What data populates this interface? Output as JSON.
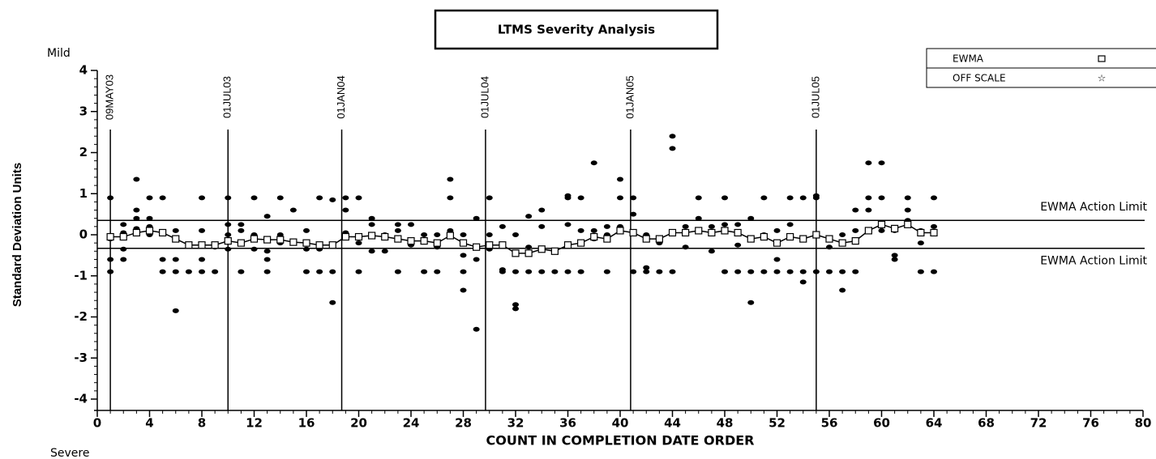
{
  "chart_data": {
    "type": "scatter",
    "title": "LTMS Severity Analysis",
    "top_label": "Mild",
    "bottom_label": "Severe",
    "y_label": "Standard Deviation Units",
    "x_label": "COUNT IN COMPLETION DATE ORDER",
    "xlim": [
      0,
      80
    ],
    "xticks": [
      0,
      4,
      8,
      12,
      16,
      20,
      24,
      28,
      32,
      36,
      40,
      44,
      48,
      52,
      56,
      60,
      64,
      68,
      72,
      76,
      80
    ],
    "ylim": [
      -4,
      4
    ],
    "yticks": [
      -4,
      -3,
      -2,
      -1,
      0,
      1,
      2,
      3,
      4
    ],
    "legend": {
      "position": "top-right",
      "entries": [
        "EWMA",
        "OFF SCALE"
      ]
    },
    "limits": [
      {
        "value": 0.35,
        "label": "EWMA Action Limit"
      },
      {
        "value": -0.33,
        "label": "EWMA Action Limit"
      }
    ],
    "date_lines": [
      {
        "x": 1,
        "label": "09MAY03"
      },
      {
        "x": 10,
        "label": "01JUL03"
      },
      {
        "x": 18.7,
        "label": "01JAN04"
      },
      {
        "x": 29.7,
        "label": "01JUL04"
      },
      {
        "x": 40.8,
        "label": "01JAN05"
      },
      {
        "x": 55,
        "label": "01JUL05"
      }
    ],
    "tests": [
      {
        "x": 1,
        "values": [
          0.9,
          -0.6,
          -0.9,
          -0.1
        ]
      },
      {
        "x": 2,
        "values": [
          0.25,
          -0.35,
          -0.6,
          0.05
        ]
      },
      {
        "x": 3,
        "values": [
          1.35,
          0.6,
          0.4,
          0.15
        ]
      },
      {
        "x": 4,
        "values": [
          0.9,
          0.4,
          0.2,
          0
        ]
      },
      {
        "x": 5,
        "values": [
          0.9,
          -0.6,
          -0.9
        ]
      },
      {
        "x": 6,
        "values": [
          -0.6,
          -0.9,
          -1.85,
          0.1
        ]
      },
      {
        "x": 7,
        "values": [
          -0.9
        ]
      },
      {
        "x": 8,
        "values": [
          0.9,
          -0.6,
          -0.9,
          0.1
        ]
      },
      {
        "x": 9,
        "values": [
          -0.3,
          -0.9
        ]
      },
      {
        "x": 10,
        "values": [
          0.9,
          0.25,
          -0.35,
          0
        ]
      },
      {
        "x": 11,
        "values": [
          0.25,
          0.1,
          -0.9
        ]
      },
      {
        "x": 12,
        "values": [
          0.9,
          -0.35,
          0
        ]
      },
      {
        "x": 13,
        "values": [
          0.45,
          -0.4,
          -0.6,
          -0.9
        ]
      },
      {
        "x": 14,
        "values": [
          0.9,
          0,
          -0.2
        ]
      },
      {
        "x": 15,
        "values": [
          0.6,
          -0.2
        ]
      },
      {
        "x": 16,
        "values": [
          -0.9,
          -0.35,
          0.1
        ]
      },
      {
        "x": 17,
        "values": [
          0.9,
          -0.9,
          -0.35
        ]
      },
      {
        "x": 18,
        "values": [
          0.85,
          -1.65,
          -0.9
        ]
      },
      {
        "x": 19,
        "values": [
          0.9,
          0.6,
          0.05
        ]
      },
      {
        "x": 20,
        "values": [
          0.9,
          -0.2,
          -0.9
        ]
      },
      {
        "x": 21,
        "values": [
          0.4,
          0.25,
          -0.4
        ]
      },
      {
        "x": 22,
        "values": [
          0,
          -0.4
        ]
      },
      {
        "x": 23,
        "values": [
          0.25,
          -0.9,
          0.1
        ]
      },
      {
        "x": 24,
        "values": [
          0.25,
          -0.25,
          -0.2
        ]
      },
      {
        "x": 25,
        "values": [
          0,
          -0.9
        ]
      },
      {
        "x": 26,
        "values": [
          -0.9,
          0,
          -0.3
        ]
      },
      {
        "x": 27,
        "values": [
          1.35,
          0.9,
          0.1
        ]
      },
      {
        "x": 28,
        "values": [
          -0.5,
          -1.35,
          -0.9,
          0
        ]
      },
      {
        "x": 29,
        "values": [
          0.4,
          -2.3,
          -0.6
        ]
      },
      {
        "x": 30,
        "values": [
          0.9,
          0,
          -0.35
        ]
      },
      {
        "x": 31,
        "values": [
          -0.9,
          -0.85,
          0.2
        ]
      },
      {
        "x": 32,
        "values": [
          -1.7,
          -1.8,
          -0.9,
          0
        ]
      },
      {
        "x": 33,
        "values": [
          0.45,
          -0.9,
          -0.3
        ]
      },
      {
        "x": 34,
        "values": [
          0.2,
          -0.9,
          0.6
        ]
      },
      {
        "x": 35,
        "values": [
          -0.9,
          -0.4
        ]
      },
      {
        "x": 36,
        "values": [
          0.95,
          0.9,
          -0.9,
          0.25
        ]
      },
      {
        "x": 37,
        "values": [
          0.9,
          -0.9,
          0.1
        ]
      },
      {
        "x": 38,
        "values": [
          1.75,
          0.1,
          -0.1
        ]
      },
      {
        "x": 39,
        "values": [
          0.2,
          -0.9,
          0
        ]
      },
      {
        "x": 40,
        "values": [
          1.35,
          0.9,
          0.2
        ]
      },
      {
        "x": 41,
        "values": [
          0.9,
          -0.9,
          0.5
        ]
      },
      {
        "x": 42,
        "values": [
          -0.8,
          -0.9,
          0
        ]
      },
      {
        "x": 43,
        "values": [
          -0.2,
          -0.9
        ]
      },
      {
        "x": 44,
        "values": [
          2.4,
          2.1,
          -0.9
        ]
      },
      {
        "x": 45,
        "values": [
          0.2,
          -0.3
        ]
      },
      {
        "x": 46,
        "values": [
          0.9,
          0.4,
          0.1
        ]
      },
      {
        "x": 47,
        "values": [
          -0.4,
          0.2
        ]
      },
      {
        "x": 48,
        "values": [
          0.9,
          -0.9,
          0.25
        ]
      },
      {
        "x": 49,
        "values": [
          0.25,
          -0.9,
          -0.25
        ]
      },
      {
        "x": 50,
        "values": [
          0.4,
          -1.65,
          -0.9
        ]
      },
      {
        "x": 51,
        "values": [
          0.9,
          -0.9,
          0
        ]
      },
      {
        "x": 52,
        "values": [
          -0.6,
          -0.9,
          0.1
        ]
      },
      {
        "x": 53,
        "values": [
          0.9,
          -0.9,
          0.25
        ]
      },
      {
        "x": 54,
        "values": [
          0.9,
          -1.15,
          -0.9
        ]
      },
      {
        "x": 55,
        "values": [
          0.95,
          0.9,
          -0.9
        ]
      },
      {
        "x": 56,
        "values": [
          -0.9,
          -0.3
        ]
      },
      {
        "x": 57,
        "values": [
          -1.35,
          -0.9,
          0
        ]
      },
      {
        "x": 58,
        "values": [
          0.6,
          -0.9,
          0.1
        ]
      },
      {
        "x": 59,
        "values": [
          1.75,
          0.9,
          0.6
        ]
      },
      {
        "x": 60,
        "values": [
          1.75,
          0.9,
          0.1
        ]
      },
      {
        "x": 61,
        "values": [
          -0.5,
          -0.6,
          0.1
        ]
      },
      {
        "x": 62,
        "values": [
          0.9,
          0.6,
          0.35
        ]
      },
      {
        "x": 63,
        "values": [
          -0.9,
          -0.2,
          0.1
        ]
      },
      {
        "x": 64,
        "values": [
          0.9,
          -0.9,
          0.2
        ]
      }
    ],
    "ewma": {
      "name": "EWMA",
      "x": [
        1,
        2,
        3,
        4,
        5,
        6,
        7,
        8,
        9,
        10,
        11,
        12,
        13,
        14,
        15,
        16,
        17,
        18,
        19,
        20,
        21,
        22,
        23,
        24,
        25,
        26,
        27,
        28,
        29,
        30,
        31,
        32,
        33,
        34,
        35,
        36,
        37,
        38,
        39,
        40,
        41,
        42,
        43,
        44,
        45,
        46,
        47,
        48,
        49,
        50,
        51,
        52,
        53,
        54,
        55,
        56,
        57,
        58,
        59,
        60,
        61,
        62,
        63,
        64
      ],
      "values": [
        -0.05,
        -0.05,
        0.05,
        0.1,
        0.05,
        -0.1,
        -0.25,
        -0.25,
        -0.25,
        -0.15,
        -0.2,
        -0.1,
        -0.12,
        -0.12,
        -0.18,
        -0.2,
        -0.25,
        -0.25,
        -0.05,
        -0.05,
        -0.02,
        -0.05,
        -0.1,
        -0.15,
        -0.15,
        -0.2,
        -0.02,
        -0.2,
        -0.3,
        -0.25,
        -0.25,
        -0.45,
        -0.45,
        -0.35,
        -0.4,
        -0.25,
        -0.2,
        -0.05,
        -0.1,
        0.1,
        0.05,
        -0.1,
        -0.1,
        0.05,
        0.05,
        0.1,
        0.05,
        0.1,
        0.05,
        -0.1,
        -0.05,
        -0.2,
        -0.05,
        -0.1,
        0,
        -0.1,
        -0.2,
        -0.15,
        0.1,
        0.25,
        0.15,
        0.25,
        0.05,
        0.05
      ]
    }
  }
}
